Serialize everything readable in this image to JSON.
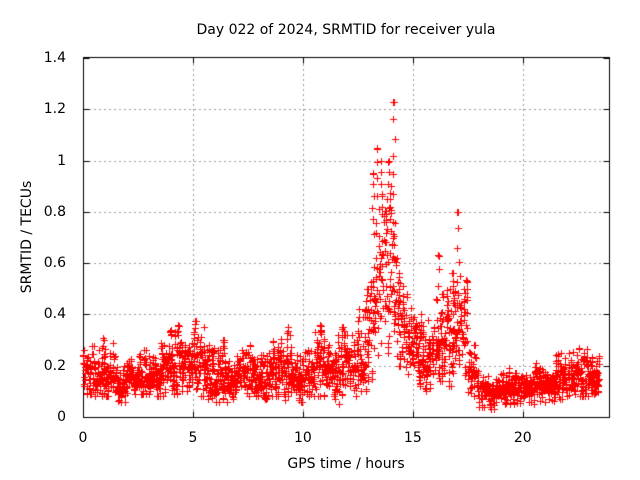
{
  "chart_data": {
    "type": "scatter",
    "title": "Day 022 of 2024, SRMTID for receiver yula",
    "xlabel": "GPS time / hours",
    "ylabel": "SRMTID / TECUs",
    "xlim": [
      0,
      23.92
    ],
    "ylim": [
      0,
      1.4
    ],
    "xticks": [
      0,
      5,
      10,
      15,
      20
    ],
    "yticks": [
      0,
      0.2,
      0.4,
      0.6,
      0.8,
      1.0,
      1.2,
      1.4
    ],
    "xticklabels": [
      "0",
      "5",
      "10",
      "15",
      "20"
    ],
    "yticklabels": [
      "0",
      "0.2",
      "0.4",
      "0.6",
      "0.8",
      "1",
      "1.2",
      "1.4"
    ],
    "grid": true,
    "legend": "none",
    "marker": {
      "shape": "plus",
      "size": 7,
      "color": "#ff0000"
    },
    "colors": {
      "marker": "#ff0000",
      "grid": "#9e9e9e",
      "axis": "#000000",
      "background": "#ffffff"
    },
    "series_name": "SRMTID",
    "envelope_bins": [
      [
        0.0,
        0.5,
        0.09,
        0.28
      ],
      [
        0.5,
        1.0,
        0.08,
        0.26
      ],
      [
        1.0,
        1.5,
        0.08,
        0.3
      ],
      [
        1.5,
        2.0,
        0.06,
        0.2
      ],
      [
        2.0,
        2.5,
        0.08,
        0.24
      ],
      [
        2.5,
        3.0,
        0.09,
        0.26
      ],
      [
        3.0,
        3.5,
        0.08,
        0.24
      ],
      [
        3.5,
        4.0,
        0.08,
        0.3
      ],
      [
        4.0,
        4.5,
        0.09,
        0.33
      ],
      [
        4.5,
        5.0,
        0.1,
        0.3
      ],
      [
        5.0,
        5.5,
        0.08,
        0.35
      ],
      [
        5.5,
        6.0,
        0.07,
        0.28
      ],
      [
        6.0,
        6.5,
        0.06,
        0.26
      ],
      [
        6.5,
        7.0,
        0.06,
        0.22
      ],
      [
        7.0,
        7.5,
        0.08,
        0.26
      ],
      [
        7.5,
        8.0,
        0.08,
        0.28
      ],
      [
        8.0,
        8.5,
        0.07,
        0.26
      ],
      [
        8.5,
        9.0,
        0.08,
        0.3
      ],
      [
        9.0,
        9.5,
        0.05,
        0.32
      ],
      [
        9.5,
        10.0,
        0.06,
        0.24
      ],
      [
        10.0,
        10.5,
        0.08,
        0.26
      ],
      [
        10.5,
        11.0,
        0.08,
        0.33
      ],
      [
        11.0,
        11.5,
        0.07,
        0.28
      ],
      [
        11.5,
        12.0,
        0.05,
        0.32
      ],
      [
        12.0,
        12.5,
        0.08,
        0.32
      ],
      [
        12.5,
        13.0,
        0.1,
        0.42
      ],
      [
        13.0,
        13.25,
        0.15,
        0.75
      ],
      [
        13.25,
        13.5,
        0.2,
        0.9
      ],
      [
        13.5,
        13.75,
        0.25,
        0.9
      ],
      [
        13.75,
        14.0,
        0.25,
        0.85
      ],
      [
        14.0,
        14.25,
        0.25,
        0.9
      ],
      [
        14.25,
        14.5,
        0.2,
        0.7
      ],
      [
        14.5,
        14.75,
        0.18,
        0.55
      ],
      [
        14.75,
        15.0,
        0.15,
        0.45
      ],
      [
        15.0,
        15.5,
        0.12,
        0.4
      ],
      [
        15.5,
        16.0,
        0.1,
        0.38
      ],
      [
        16.0,
        16.5,
        0.12,
        0.48
      ],
      [
        16.5,
        17.0,
        0.12,
        0.5
      ],
      [
        17.0,
        17.5,
        0.12,
        0.55
      ],
      [
        17.5,
        18.0,
        0.08,
        0.28
      ],
      [
        18.0,
        18.5,
        0.04,
        0.16
      ],
      [
        18.5,
        19.0,
        0.03,
        0.15
      ],
      [
        19.0,
        19.5,
        0.05,
        0.2
      ],
      [
        19.5,
        20.0,
        0.04,
        0.17
      ],
      [
        20.0,
        20.5,
        0.05,
        0.17
      ],
      [
        20.5,
        21.0,
        0.06,
        0.22
      ],
      [
        21.0,
        21.5,
        0.06,
        0.2
      ],
      [
        21.5,
        22.0,
        0.07,
        0.26
      ],
      [
        22.0,
        22.5,
        0.06,
        0.26
      ],
      [
        22.5,
        23.0,
        0.08,
        0.3
      ],
      [
        23.0,
        23.5,
        0.08,
        0.24
      ]
    ],
    "spike_points": [
      [
        0.9,
        0.31
      ],
      [
        4.0,
        0.34
      ],
      [
        4.3,
        0.36
      ],
      [
        5.1,
        0.375
      ],
      [
        6.4,
        0.3
      ],
      [
        9.3,
        0.35
      ],
      [
        10.8,
        0.36
      ],
      [
        11.8,
        0.35
      ],
      [
        12.9,
        0.5
      ],
      [
        13.2,
        0.95
      ],
      [
        13.35,
        1.05
      ],
      [
        13.55,
        1.0
      ],
      [
        13.9,
        1.0
      ],
      [
        14.15,
        1.23
      ],
      [
        16.15,
        0.63
      ],
      [
        16.8,
        0.56
      ],
      [
        17.05,
        0.8
      ]
    ]
  }
}
